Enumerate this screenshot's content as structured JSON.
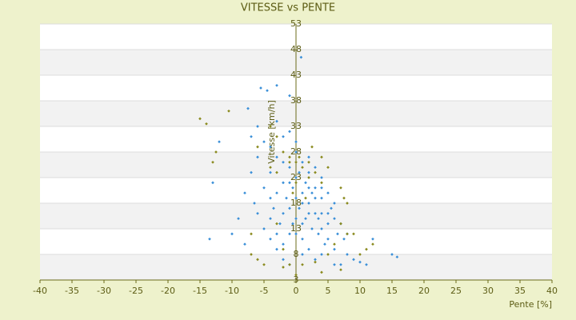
{
  "chart_data": {
    "type": "scatter",
    "title": "VITESSE vs PENTE",
    "x_label": "Pente [%]",
    "y_label": "Vitesse [km/h]",
    "xlim": [
      -40,
      40
    ],
    "xticks": [
      -40,
      -35,
      -30,
      -25,
      -20,
      -15,
      -10,
      -5,
      0,
      5,
      10,
      15,
      20,
      25,
      30,
      35,
      40
    ],
    "ylim": [
      3,
      53
    ],
    "yticks": [
      3,
      8,
      13,
      18,
      23,
      28,
      33,
      38,
      43,
      48,
      53
    ],
    "grid": true,
    "series": [
      {
        "color": "#3a8fd8",
        "x": [
          0.8,
          -5.5,
          -4.5,
          -3,
          -7.5,
          -13.5,
          -13,
          -12,
          15,
          15.8,
          12,
          11,
          10,
          -7,
          -5,
          -6,
          -1,
          -3,
          -9,
          -8,
          -10,
          -6.5,
          -4,
          -2,
          -1.5,
          -0.5,
          0.5,
          1,
          1.5,
          2,
          2.5,
          3,
          3.5,
          4,
          4.5,
          5,
          5.5,
          6,
          6.5,
          7,
          7.5,
          8,
          -3.5,
          -2.5,
          -1,
          0,
          1,
          2,
          3,
          4,
          5,
          6,
          -5,
          -4,
          -3,
          -2,
          -1,
          0,
          1,
          2,
          3,
          4,
          -6,
          -5,
          -4,
          -3,
          -2,
          -1,
          0,
          1,
          2,
          3,
          5,
          7,
          -8,
          -7,
          -6,
          -4,
          -2,
          0,
          2,
          4,
          6,
          8,
          9,
          -3,
          -1,
          1,
          3,
          5,
          -4,
          -2,
          0,
          2,
          4,
          6,
          -1,
          0.5,
          1.5,
          2.5,
          -0.5,
          -2,
          3.5,
          -3,
          4,
          1,
          -1,
          0
        ],
        "values": [
          46.5,
          40.5,
          40,
          41,
          36.5,
          11,
          22,
          30,
          8,
          7.5,
          11,
          6,
          6.5,
          31,
          30,
          33,
          39,
          34,
          15,
          20,
          12,
          18,
          24,
          22,
          19,
          21,
          17,
          20,
          15,
          18,
          13,
          16,
          12,
          19,
          10,
          14,
          17,
          9,
          12,
          6,
          11,
          8,
          17,
          14,
          25,
          23,
          26,
          24,
          21,
          23,
          20,
          18,
          13,
          11,
          9,
          7,
          12,
          15,
          11,
          9,
          7,
          13,
          16,
          21,
          19,
          27,
          26,
          17,
          19,
          14,
          21,
          25,
          11,
          14,
          10,
          24,
          27,
          29,
          31,
          28,
          27,
          16,
          15,
          12,
          7,
          20,
          22,
          18,
          19,
          16,
          15,
          10,
          12,
          16,
          8,
          6,
          6,
          24,
          22,
          20,
          14,
          16,
          15,
          12,
          21,
          8,
          32,
          30
        ]
      },
      {
        "color": "#8a8a1e",
        "x": [
          -15,
          -14,
          -10.5,
          -13,
          -12.5,
          -6,
          -4,
          -3,
          -2,
          -1,
          0,
          1,
          2,
          3,
          4,
          5,
          7,
          7.5,
          8,
          7,
          8,
          12,
          11,
          10,
          7,
          4,
          0,
          -1,
          -2,
          -6,
          -7,
          -4,
          -3,
          -1,
          0.5,
          2,
          -2,
          1,
          3,
          5,
          -5,
          0,
          -0.5,
          1.5,
          6,
          9,
          -3,
          2.5,
          -7,
          4
        ],
        "values": [
          34.5,
          33.5,
          36,
          26,
          28,
          29,
          33,
          31,
          28,
          27,
          26,
          25,
          23,
          24,
          22,
          25,
          21,
          19,
          18,
          14,
          12,
          10,
          9,
          8,
          5,
          4.5,
          4,
          6,
          5.5,
          7,
          8,
          25,
          24,
          26,
          27,
          26,
          9,
          6,
          6.5,
          8,
          6,
          22,
          20,
          19,
          10,
          12,
          14,
          29,
          12,
          27
        ]
      }
    ]
  }
}
